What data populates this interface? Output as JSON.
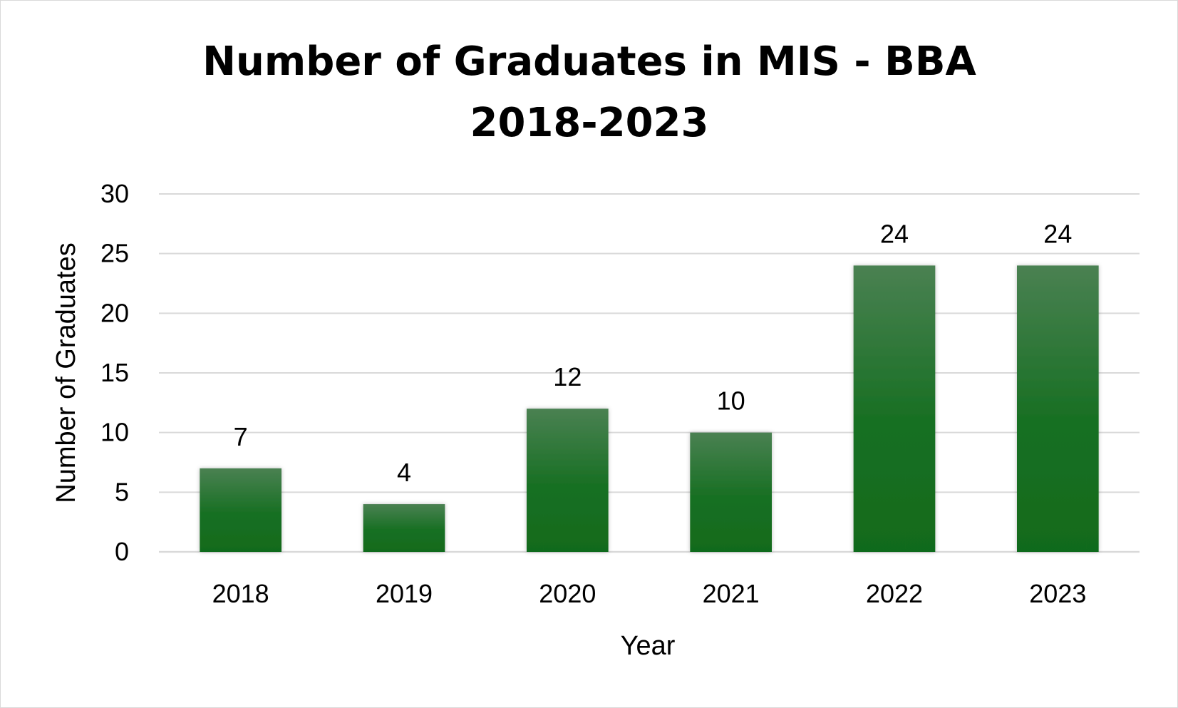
{
  "chart_data": {
    "type": "bar",
    "title_lines": [
      "Number of Graduates in MIS - BBA",
      "2018-2023"
    ],
    "xlabel": "Year",
    "ylabel": "Number of Graduates",
    "categories": [
      "2018",
      "2019",
      "2020",
      "2021",
      "2022",
      "2023"
    ],
    "values": [
      7,
      4,
      12,
      10,
      24,
      24
    ],
    "data_labels": [
      "7",
      "4",
      "12",
      "10",
      "24",
      "24"
    ],
    "ylim": [
      0,
      30
    ],
    "yticks": [
      "0",
      "5",
      "10",
      "15",
      "20",
      "25",
      "30"
    ],
    "grid": true,
    "legend": "none",
    "colors": {
      "bar_top": "#4a8152",
      "bar_bottom": "#116b1d"
    }
  }
}
